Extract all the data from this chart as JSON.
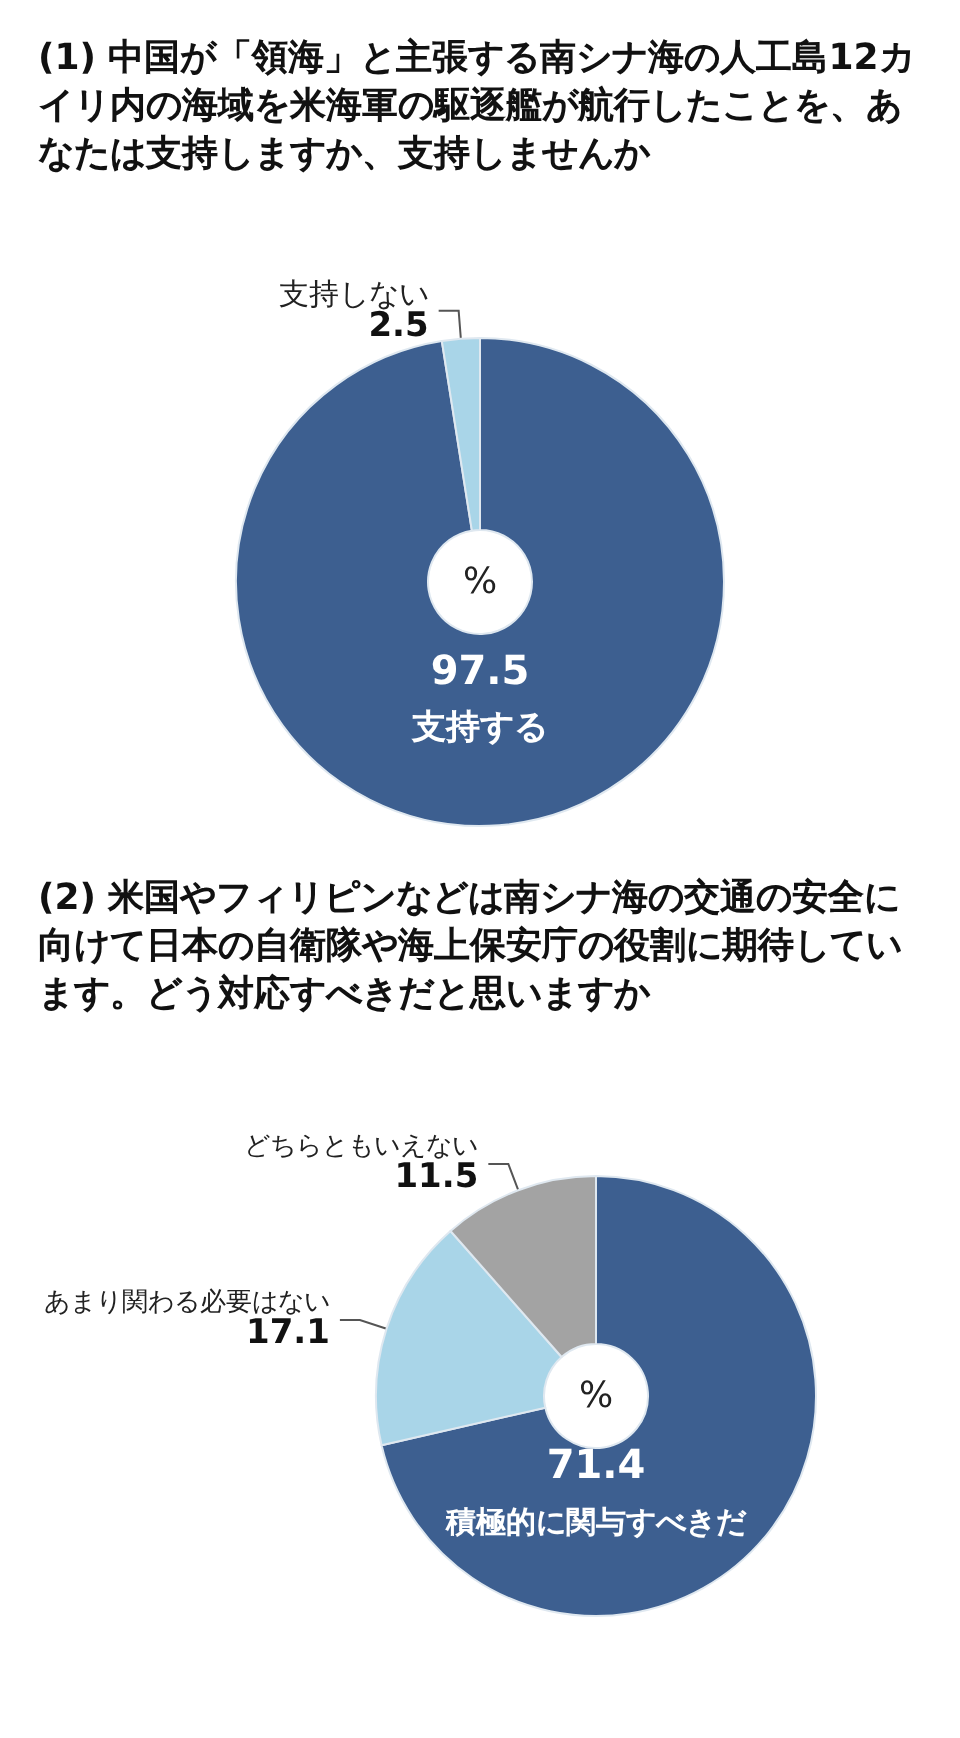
{
  "chart_data": [
    {
      "type": "donut",
      "title": "(1) 中国が「領海」と主張する南シナ海の人工島12カイリ内の海域を米海軍の駆逐艦が航行したことを、あなたは支持しますか、支持しませんか",
      "categories": [
        "支持する",
        "支持しない"
      ],
      "values": [
        97.5,
        2.5
      ],
      "colors": [
        "#3d5f90",
        "#a9d5e8"
      ],
      "data_labels": true,
      "annotations": [
        "%"
      ]
    },
    {
      "type": "donut",
      "title": "(2) 米国やフィリピンなどは南シナ海の交通の安全に向けて日本の自衛隊や海上保安庁の役割に期待しています。どう対応すべきだと思いますか",
      "categories": [
        "積極的に関与すべきだ",
        "あまり関わる必要はない",
        "どちらともいえない"
      ],
      "values": [
        71.4,
        17.1,
        11.5
      ],
      "colors": [
        "#3d5f90",
        "#a9d5e8",
        "#a3a3a3"
      ],
      "data_labels": true,
      "annotations": [
        "%"
      ]
    }
  ]
}
